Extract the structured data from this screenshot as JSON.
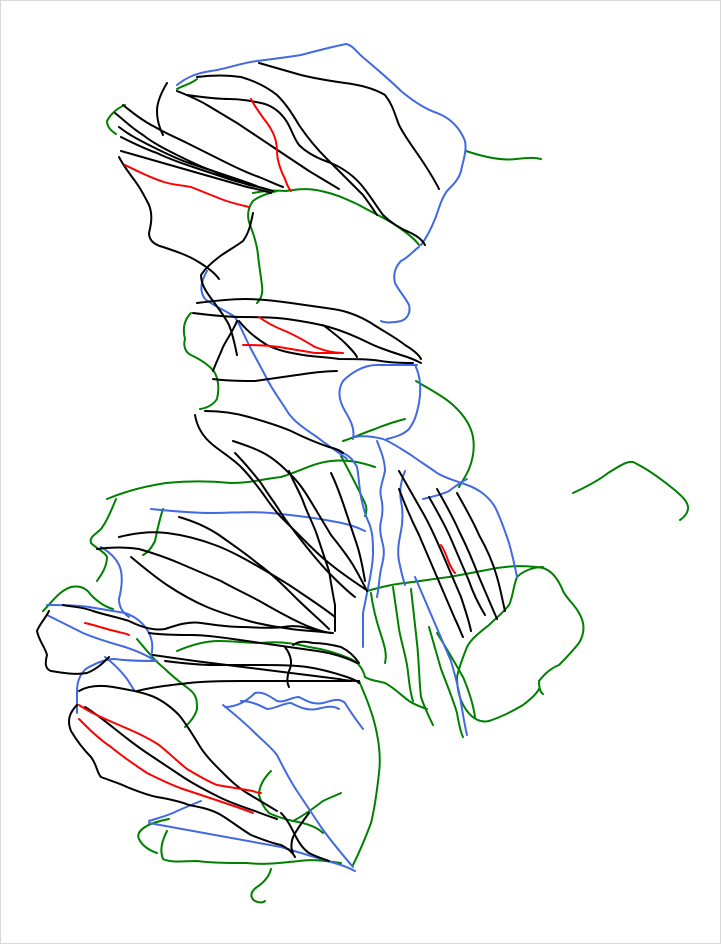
{
  "map": {
    "kind": "trail-line-map",
    "background_color": "#ffffff",
    "legend": null,
    "line_categories": [
      {
        "id": "black",
        "color": "#000000"
      },
      {
        "id": "red",
        "color": "#ff0000"
      },
      {
        "id": "blue",
        "color": "#4169e1"
      },
      {
        "id": "green",
        "color": "#008000"
      }
    ]
  }
}
